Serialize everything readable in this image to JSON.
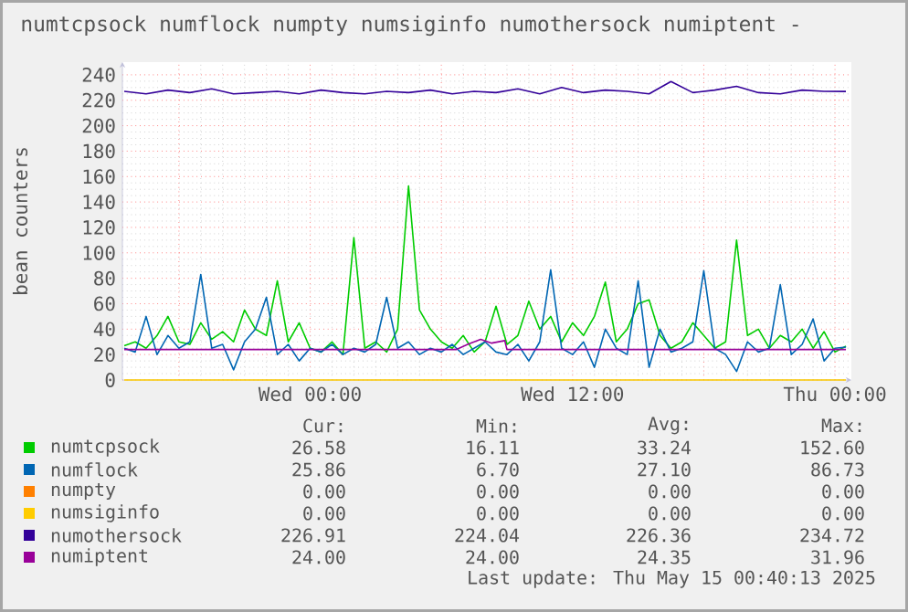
{
  "chart_data": {
    "type": "line",
    "title": "numtcpsock numflock numpty numsiginfo numothersock numiptent -",
    "ylabel": "bean counters",
    "xlim": [
      "2025-05-13T15:25",
      "2025-05-15T00:45"
    ],
    "ylim": [
      0,
      250
    ],
    "xticks": [
      {
        "value": "2025-05-13T18:00",
        "label": null
      },
      {
        "value": "2025-05-14T00:00",
        "label": "Wed 00:00"
      },
      {
        "value": "2025-05-14T06:00",
        "label": null
      },
      {
        "value": "2025-05-14T12:00",
        "label": "Wed 12:00"
      },
      {
        "value": "2025-05-14T18:00",
        "label": null
      },
      {
        "value": "2025-05-15T00:00",
        "label": "Thu 00:00"
      }
    ],
    "yticks": [
      0,
      20,
      40,
      60,
      80,
      100,
      120,
      140,
      160,
      180,
      200,
      220,
      240
    ],
    "grid": true,
    "legend": "bottom",
    "series": [
      {
        "name": "numtcpsock",
        "color": "#00cc00",
        "x": [
          "2025-05-13T15:30",
          "2025-05-13T16:00",
          "2025-05-13T16:30",
          "2025-05-13T17:00",
          "2025-05-13T17:30",
          "2025-05-13T18:00",
          "2025-05-13T18:30",
          "2025-05-13T19:00",
          "2025-05-13T19:30",
          "2025-05-13T20:00",
          "2025-05-13T20:30",
          "2025-05-13T21:00",
          "2025-05-13T21:30",
          "2025-05-13T22:00",
          "2025-05-13T22:30",
          "2025-05-13T23:00",
          "2025-05-13T23:30",
          "2025-05-14T00:00",
          "2025-05-14T00:30",
          "2025-05-14T01:00",
          "2025-05-14T01:30",
          "2025-05-14T02:00",
          "2025-05-14T02:30",
          "2025-05-14T03:00",
          "2025-05-14T03:30",
          "2025-05-14T04:00",
          "2025-05-14T04:30",
          "2025-05-14T05:00",
          "2025-05-14T05:30",
          "2025-05-14T06:00",
          "2025-05-14T06:30",
          "2025-05-14T07:00",
          "2025-05-14T07:30",
          "2025-05-14T08:00",
          "2025-05-14T08:30",
          "2025-05-14T09:00",
          "2025-05-14T09:30",
          "2025-05-14T10:00",
          "2025-05-14T10:30",
          "2025-05-14T11:00",
          "2025-05-14T11:30",
          "2025-05-14T12:00",
          "2025-05-14T12:30",
          "2025-05-14T13:00",
          "2025-05-14T13:30",
          "2025-05-14T14:00",
          "2025-05-14T14:30",
          "2025-05-14T15:00",
          "2025-05-14T15:30",
          "2025-05-14T16:00",
          "2025-05-14T16:30",
          "2025-05-14T17:00",
          "2025-05-14T17:30",
          "2025-05-14T18:00",
          "2025-05-14T18:30",
          "2025-05-14T19:00",
          "2025-05-14T19:30",
          "2025-05-14T20:00",
          "2025-05-14T20:30",
          "2025-05-14T21:00",
          "2025-05-14T21:30",
          "2025-05-14T22:00",
          "2025-05-14T22:30",
          "2025-05-14T23:00",
          "2025-05-14T23:30",
          "2025-05-15T00:00",
          "2025-05-15T00:30"
        ],
        "values": [
          27,
          30,
          25,
          35,
          50,
          30,
          28,
          45,
          32,
          38,
          30,
          55,
          40,
          35,
          78,
          30,
          45,
          25,
          22,
          30,
          20,
          112,
          25,
          30,
          22,
          40,
          152.6,
          55,
          40,
          30,
          25,
          35,
          22,
          30,
          58,
          28,
          35,
          62,
          40,
          50,
          30,
          45,
          35,
          50,
          77,
          30,
          40,
          60,
          63,
          35,
          25,
          30,
          45,
          35,
          25,
          30,
          110,
          35,
          40,
          25,
          35,
          30,
          40,
          25,
          38,
          22,
          26.58
        ]
      },
      {
        "name": "numflock",
        "color": "#0066b3",
        "x": [
          "2025-05-13T15:30",
          "2025-05-13T16:00",
          "2025-05-13T16:30",
          "2025-05-13T17:00",
          "2025-05-13T17:30",
          "2025-05-13T18:00",
          "2025-05-13T18:30",
          "2025-05-13T19:00",
          "2025-05-13T19:30",
          "2025-05-13T20:00",
          "2025-05-13T20:30",
          "2025-05-13T21:00",
          "2025-05-13T21:30",
          "2025-05-13T22:00",
          "2025-05-13T22:30",
          "2025-05-13T23:00",
          "2025-05-13T23:30",
          "2025-05-14T00:00",
          "2025-05-14T00:30",
          "2025-05-14T01:00",
          "2025-05-14T01:30",
          "2025-05-14T02:00",
          "2025-05-14T02:30",
          "2025-05-14T03:00",
          "2025-05-14T03:30",
          "2025-05-14T04:00",
          "2025-05-14T04:30",
          "2025-05-14T05:00",
          "2025-05-14T05:30",
          "2025-05-14T06:00",
          "2025-05-14T06:30",
          "2025-05-14T07:00",
          "2025-05-14T07:30",
          "2025-05-14T08:00",
          "2025-05-14T08:30",
          "2025-05-14T09:00",
          "2025-05-14T09:30",
          "2025-05-14T10:00",
          "2025-05-14T10:30",
          "2025-05-14T11:00",
          "2025-05-14T11:30",
          "2025-05-14T12:00",
          "2025-05-14T12:30",
          "2025-05-14T13:00",
          "2025-05-14T13:30",
          "2025-05-14T14:00",
          "2025-05-14T14:30",
          "2025-05-14T15:00",
          "2025-05-14T15:30",
          "2025-05-14T16:00",
          "2025-05-14T16:30",
          "2025-05-14T17:00",
          "2025-05-14T17:30",
          "2025-05-14T18:00",
          "2025-05-14T18:30",
          "2025-05-14T19:00",
          "2025-05-14T19:30",
          "2025-05-14T20:00",
          "2025-05-14T20:30",
          "2025-05-14T21:00",
          "2025-05-14T21:30",
          "2025-05-14T22:00",
          "2025-05-14T22:30",
          "2025-05-14T23:00",
          "2025-05-14T23:30",
          "2025-05-15T00:00",
          "2025-05-15T00:30"
        ],
        "values": [
          25,
          22,
          50,
          20,
          35,
          25,
          30,
          83,
          25,
          28,
          8,
          30,
          40,
          65,
          20,
          28,
          15,
          25,
          22,
          28,
          20,
          25,
          22,
          28,
          65,
          25,
          30,
          20,
          25,
          22,
          28,
          20,
          25,
          30,
          22,
          20,
          28,
          15,
          30,
          86.73,
          25,
          20,
          30,
          10,
          40,
          25,
          20,
          78,
          10,
          40,
          22,
          25,
          30,
          86,
          25,
          20,
          6.7,
          30,
          22,
          25,
          75,
          20,
          28,
          48,
          15,
          25,
          25.86
        ]
      },
      {
        "name": "numpty",
        "color": "#ff8000"
      },
      {
        "name": "numsiginfo",
        "color": "#ffcc00",
        "x": [
          "2025-05-13T15:30",
          "2025-05-15T00:30"
        ],
        "values": [
          0,
          0
        ]
      },
      {
        "name": "numothersock",
        "color": "#330099",
        "x": [
          "2025-05-13T15:30",
          "2025-05-13T16:30",
          "2025-05-13T17:30",
          "2025-05-13T18:30",
          "2025-05-13T19:30",
          "2025-05-13T20:30",
          "2025-05-13T21:30",
          "2025-05-13T22:30",
          "2025-05-13T23:30",
          "2025-05-14T00:30",
          "2025-05-14T01:30",
          "2025-05-14T02:30",
          "2025-05-14T03:30",
          "2025-05-14T04:30",
          "2025-05-14T05:30",
          "2025-05-14T06:30",
          "2025-05-14T07:30",
          "2025-05-14T08:30",
          "2025-05-14T09:30",
          "2025-05-14T10:30",
          "2025-05-14T11:30",
          "2025-05-14T12:30",
          "2025-05-14T13:30",
          "2025-05-14T14:30",
          "2025-05-14T15:30",
          "2025-05-14T16:30",
          "2025-05-14T17:30",
          "2025-05-14T18:30",
          "2025-05-14T19:30",
          "2025-05-14T20:30",
          "2025-05-14T21:30",
          "2025-05-14T22:30",
          "2025-05-14T23:30",
          "2025-05-15T00:30"
        ],
        "values": [
          227,
          225,
          228,
          226,
          229,
          225,
          226,
          227,
          225,
          228,
          226,
          225,
          227,
          226,
          228,
          225,
          227,
          226,
          229,
          225,
          230,
          226,
          228,
          227,
          225,
          234.72,
          226,
          228,
          231,
          226,
          225,
          228,
          227,
          226.91
        ]
      },
      {
        "name": "numiptent",
        "color": "#990099",
        "x": [
          "2025-05-13T15:30",
          "2025-05-14T06:42",
          "2025-05-14T07:12",
          "2025-05-14T07:48",
          "2025-05-14T08:18",
          "2025-05-14T08:54",
          "2025-05-14T09:00",
          "2025-05-15T00:30"
        ],
        "values": [
          24,
          24,
          28,
          31.96,
          29,
          31,
          24,
          24
        ]
      }
    ],
    "annotations": [
      "Cur:",
      "Min:",
      "Avg:",
      "Max:",
      "26.58",
      "16.11",
      "33.24",
      "152.60",
      "25.86",
      "6.70",
      "27.10",
      "86.73",
      "0.00",
      "0.00",
      "0.00",
      "0.00",
      "0.00",
      "0.00",
      "0.00",
      "0.00",
      "226.91",
      "224.04",
      "226.36",
      "234.72",
      "24.00",
      "24.00",
      "24.35",
      "31.96",
      "Last update: Thu May 15 00:40:13 2025"
    ]
  }
}
